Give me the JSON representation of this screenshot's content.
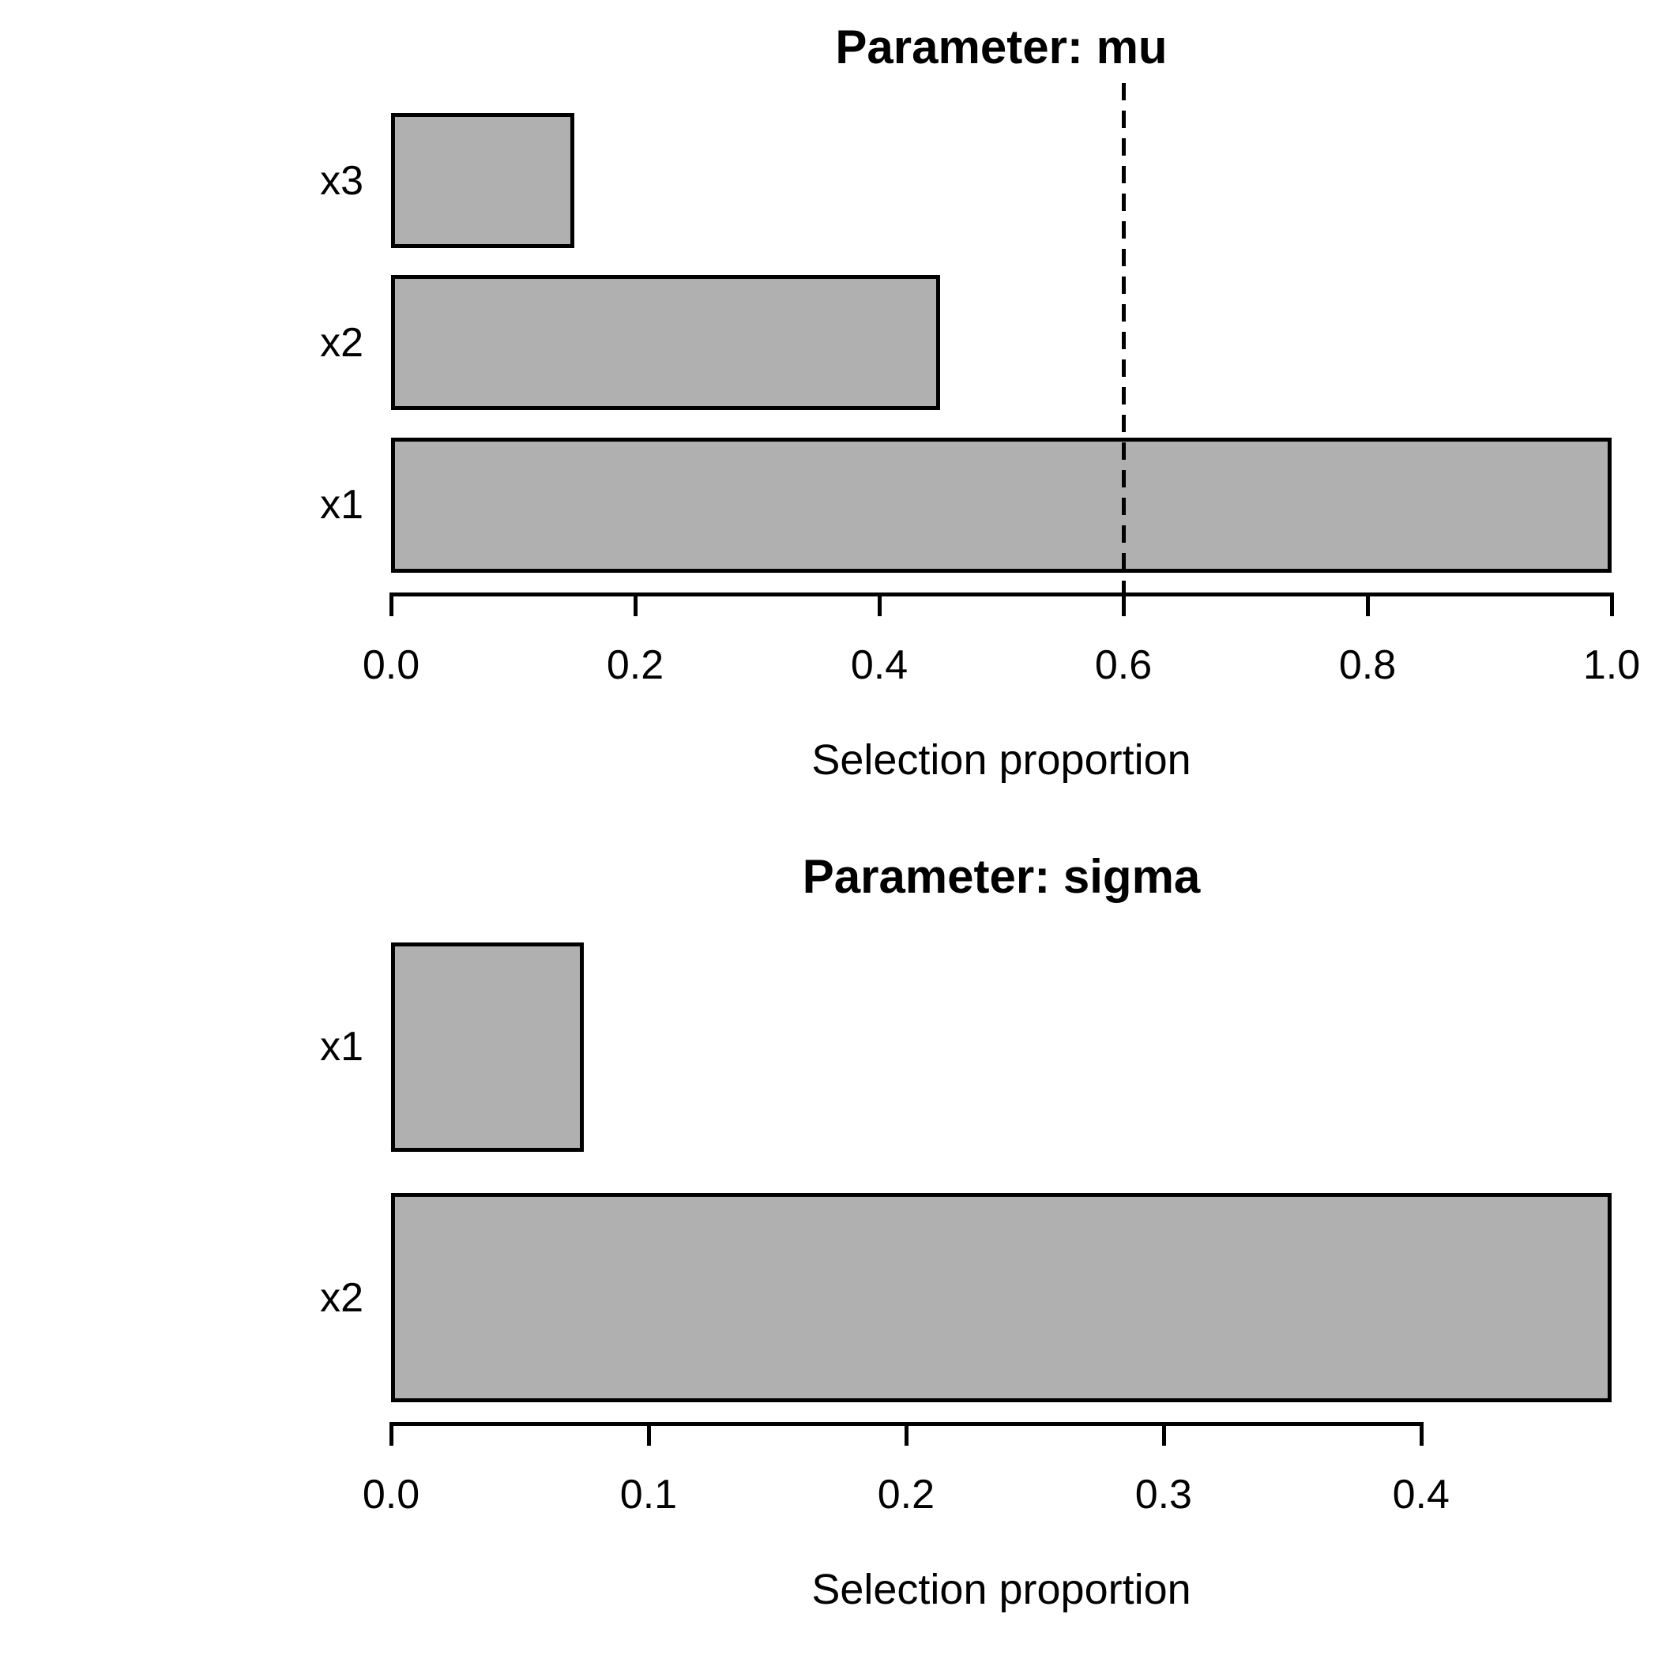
{
  "figure": {
    "background": "#ffffff",
    "bar_fill": "#b0b0b0",
    "bar_border": "#000000",
    "text_color": "#000000"
  },
  "chart_data": [
    {
      "type": "bar",
      "orientation": "horizontal",
      "title": "Parameter: mu",
      "xlabel": "Selection proportion",
      "categories": [
        "x3",
        "x2",
        "x1"
      ],
      "values": [
        0.15,
        0.45,
        1.0
      ],
      "xticks": [
        0.0,
        0.2,
        0.4,
        0.6,
        0.8,
        1.0
      ],
      "xtick_labels": [
        "0.0",
        "0.2",
        "0.4",
        "0.6",
        "0.8",
        "1.0"
      ],
      "xlim": [
        0,
        1.0
      ],
      "axis_end": 1.0,
      "threshold_line": 0.6,
      "threshold_style": "dashed",
      "grid": false,
      "legend": null
    },
    {
      "type": "bar",
      "orientation": "horizontal",
      "title": "Parameter: sigma",
      "xlabel": "Selection proportion",
      "categories": [
        "x1",
        "x2"
      ],
      "values": [
        0.075,
        0.474
      ],
      "xticks": [
        0.0,
        0.1,
        0.2,
        0.3,
        0.4
      ],
      "xtick_labels": [
        "0.0",
        "0.1",
        "0.2",
        "0.3",
        "0.4"
      ],
      "xlim": [
        0,
        0.474
      ],
      "axis_end": 0.4,
      "threshold_line": null,
      "threshold_style": null,
      "grid": false,
      "legend": null
    }
  ]
}
